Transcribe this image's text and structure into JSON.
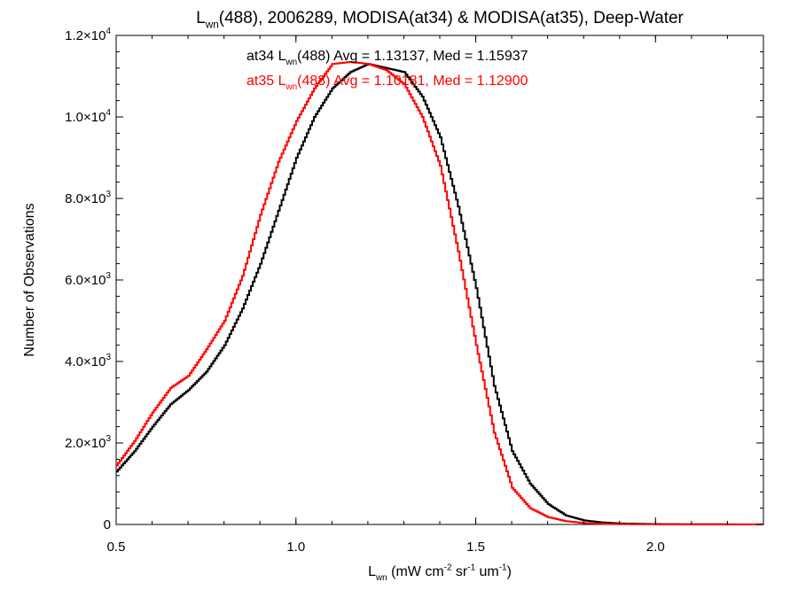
{
  "chart_data": {
    "type": "line",
    "title": {
      "parts": [
        {
          "text": "L",
          "style": "normal"
        },
        {
          "text": "wn",
          "style": "sub"
        },
        {
          "text": "(488), 2006289, MODISA(at34) & MODISA(at35), Deep-Water",
          "style": "normal"
        }
      ]
    },
    "xlabel": {
      "parts": [
        {
          "text": "L",
          "style": "normal"
        },
        {
          "text": "wn",
          "style": "sub"
        },
        {
          "text": " (mW cm",
          "style": "normal"
        },
        {
          "text": "-2",
          "style": "sup"
        },
        {
          "text": " sr",
          "style": "normal"
        },
        {
          "text": "-1",
          "style": "sup"
        },
        {
          "text": " um",
          "style": "normal"
        },
        {
          "text": "-1",
          "style": "sup"
        },
        {
          "text": ")",
          "style": "normal"
        }
      ]
    },
    "ylabel": "Number of Observations",
    "xlim": [
      0.5,
      2.3
    ],
    "ylim": [
      0,
      12000
    ],
    "grid": false,
    "xticks": [
      {
        "value": 0.5,
        "label": "0.5"
      },
      {
        "value": 1.0,
        "label": "1.0"
      },
      {
        "value": 1.5,
        "label": "1.5"
      },
      {
        "value": 2.0,
        "label": "2.0"
      }
    ],
    "yticks": [
      {
        "value": 0,
        "mant": "0",
        "exp": ""
      },
      {
        "value": 2000,
        "mant": "2.0×10",
        "exp": "3"
      },
      {
        "value": 4000,
        "mant": "4.0×10",
        "exp": "3"
      },
      {
        "value": 6000,
        "mant": "6.0×10",
        "exp": "3"
      },
      {
        "value": 8000,
        "mant": "8.0×10",
        "exp": "3"
      },
      {
        "value": 10000,
        "mant": "1.0×10",
        "exp": "4"
      },
      {
        "value": 12000,
        "mant": "1.2×10",
        "exp": "4"
      }
    ],
    "series": [
      {
        "name": "at34",
        "color": "#000000",
        "x": [
          0.5,
          0.55,
          0.6,
          0.65,
          0.7,
          0.75,
          0.8,
          0.85,
          0.9,
          0.95,
          1.0,
          1.05,
          1.1,
          1.15,
          1.2,
          1.25,
          1.3,
          1.35,
          1.4,
          1.45,
          1.5,
          1.55,
          1.6,
          1.65,
          1.7,
          1.75,
          1.8,
          1.85,
          1.9,
          2.0,
          2.1,
          2.3
        ],
        "y": [
          1300,
          1800,
          2400,
          2950,
          3300,
          3750,
          4400,
          5300,
          6400,
          7700,
          9000,
          10000,
          10700,
          11100,
          11300,
          11200,
          11100,
          10500,
          9500,
          7800,
          5800,
          3400,
          1800,
          1000,
          500,
          220,
          100,
          50,
          25,
          10,
          5,
          3
        ]
      },
      {
        "name": "at35",
        "color": "#ff0000",
        "x": [
          0.5,
          0.55,
          0.6,
          0.65,
          0.7,
          0.75,
          0.8,
          0.85,
          0.9,
          0.95,
          1.0,
          1.05,
          1.1,
          1.15,
          1.2,
          1.25,
          1.3,
          1.35,
          1.4,
          1.45,
          1.5,
          1.55,
          1.6,
          1.65,
          1.7,
          1.75,
          1.8,
          1.85,
          1.9,
          2.0,
          2.1,
          2.3
        ],
        "y": [
          1450,
          2050,
          2750,
          3350,
          3650,
          4300,
          5000,
          6100,
          7600,
          8900,
          9900,
          10700,
          11300,
          11350,
          11300,
          11150,
          10800,
          10000,
          8800,
          6700,
          4400,
          2250,
          900,
          400,
          180,
          80,
          35,
          15,
          8,
          4,
          2,
          1
        ]
      }
    ],
    "annotations": [
      {
        "color": "#000000",
        "parts": [
          {
            "text": "at34 L",
            "style": "normal"
          },
          {
            "text": "wn",
            "style": "sub"
          },
          {
            "text": "(488) Avg = 1.13137, Med = 1.15937",
            "style": "normal"
          }
        ]
      },
      {
        "color": "#ff0000",
        "parts": [
          {
            "text": "at35 L",
            "style": "normal"
          },
          {
            "text": "wn",
            "style": "sub"
          },
          {
            "text": "(488) Avg = 1.10181, Med = 1.12900",
            "style": "normal"
          }
        ]
      }
    ]
  }
}
